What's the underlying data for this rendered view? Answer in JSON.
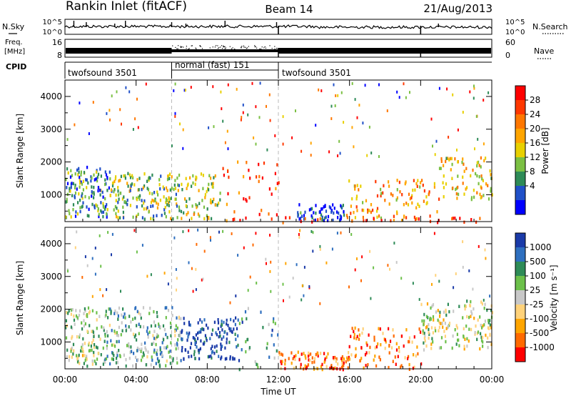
{
  "header": {
    "station": "Rankin Inlet (fitACF)",
    "beam": "Beam 14",
    "date": "21/Aug/2013"
  },
  "strips": {
    "nsky_label": "N.Sky",
    "nsearch_label": "N.Search",
    "nsky_ticks": [
      "10^5",
      "10^0"
    ],
    "nsearch_ticks": [
      "10^5",
      "10^0"
    ],
    "freq_label_line1": "Freq.",
    "freq_label_line2": "[MHz]",
    "freq_ticks": [
      "16",
      "8"
    ],
    "nave_label": "Nave",
    "nave_ticks": [
      "60",
      "0"
    ],
    "cpid_label": "CPID",
    "cpid_segments": [
      {
        "label": "twofsound 3501",
        "start": 0,
        "end": 6
      },
      {
        "label": "normal (fast) 151",
        "start": 6,
        "end": 12
      },
      {
        "label": "twofsound 3501",
        "start": 12,
        "end": 24
      }
    ]
  },
  "chart_data": [
    {
      "type": "heatmap",
      "panel": "power",
      "ylabel": "Slant Range [km]",
      "ylim": [
        180,
        4500
      ],
      "yticks": [
        1000,
        2000,
        3000,
        4000
      ],
      "xlim": [
        0,
        24
      ],
      "colorbar_label": "Power [dB]",
      "colorbar_ticks": [
        "28",
        "24",
        "20",
        "16",
        "12",
        "8",
        "4"
      ],
      "colorbar_colors": [
        "#ff0000",
        "#ff3800",
        "#ff7700",
        "#ffa500",
        "#e8d000",
        "#7bc043",
        "#2e8b57",
        "#2050c8",
        "#0000ff"
      ],
      "scatter_regions": [
        {
          "t0": 0.0,
          "t1": 2.5,
          "r0": 350,
          "r1": 1900,
          "level": 0.72,
          "density": 0.7
        },
        {
          "t0": 2.5,
          "t1": 6.5,
          "r0": 300,
          "r1": 1700,
          "level": 0.62,
          "density": 0.6
        },
        {
          "t0": 6.5,
          "t1": 8.7,
          "r0": 300,
          "r1": 1700,
          "level": 0.55,
          "density": 0.45
        },
        {
          "t0": 8.7,
          "t1": 12.0,
          "r0": 250,
          "r1": 2100,
          "level": 0.2,
          "density": 0.12
        },
        {
          "t0": 13.0,
          "t1": 15.8,
          "r0": 250,
          "r1": 750,
          "level": 0.88,
          "density": 0.85
        },
        {
          "t0": 15.8,
          "t1": 21.0,
          "r0": 250,
          "r1": 1500,
          "level": 0.35,
          "density": 0.3
        },
        {
          "t0": 21.0,
          "t1": 24.0,
          "r0": 900,
          "r1": 2200,
          "level": 0.45,
          "density": 0.4
        },
        {
          "t0": 8.0,
          "t1": 24.0,
          "r0": 180,
          "r1": 350,
          "level": 0.15,
          "density": 0.22
        }
      ]
    },
    {
      "type": "heatmap",
      "panel": "velocity",
      "ylabel": "Slant Range [km]",
      "xlabel": "Time UT",
      "ylim": [
        180,
        4500
      ],
      "yticks": [
        1000,
        2000,
        3000,
        4000
      ],
      "xlim": [
        0,
        24
      ],
      "xticks": [
        "00:00",
        "04:00",
        "08:00",
        "12:00",
        "16:00",
        "20:00",
        "00:00"
      ],
      "colorbar_label": "Velocity [m s⁻¹]",
      "colorbar_ticks": [
        "1000",
        "500",
        "100",
        "25",
        "-25",
        "-100",
        "-500",
        "-1000"
      ],
      "colorbar_colors": [
        "#1a3aa8",
        "#2e6fbf",
        "#2e8b57",
        "#6cc04a",
        "#c8c8c8",
        "#ffd27a",
        "#ffa500",
        "#ff6a00",
        "#ff0000"
      ],
      "scatter_regions": [
        {
          "t0": 0.0,
          "t1": 2.0,
          "r0": 300,
          "r1": 2100,
          "level": 0.45,
          "density": 0.6
        },
        {
          "t0": 2.0,
          "t1": 6.5,
          "r0": 300,
          "r1": 2100,
          "level": 0.35,
          "density": 0.55
        },
        {
          "t0": 6.5,
          "t1": 9.7,
          "r0": 500,
          "r1": 1800,
          "level": 0.05,
          "density": 0.65
        },
        {
          "t0": 9.7,
          "t1": 12.0,
          "r0": 200,
          "r1": 2100,
          "level": 0.3,
          "density": 0.15
        },
        {
          "t0": 12.0,
          "t1": 15.8,
          "r0": 200,
          "r1": 750,
          "level": 0.78,
          "density": 0.85
        },
        {
          "t0": 15.8,
          "t1": 20.0,
          "r0": 200,
          "r1": 1500,
          "level": 0.78,
          "density": 0.35
        },
        {
          "t0": 20.0,
          "t1": 24.0,
          "r0": 800,
          "r1": 2300,
          "level": 0.5,
          "density": 0.5
        }
      ]
    }
  ]
}
